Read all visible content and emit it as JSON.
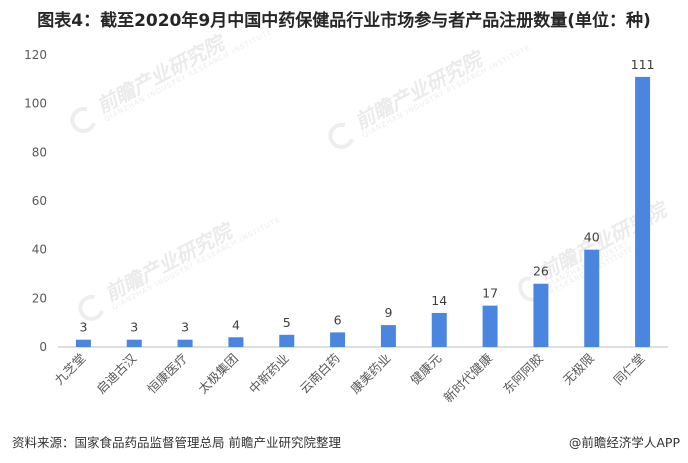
{
  "title": "图表4：截至2020年9月中国中药保健品行业市场参与者产品注册数量(单位：种)",
  "footer": "资料来源：国家食品药品监督管理总局 前瞻产业研究院整理",
  "credit": "@前瞻经济学人APP",
  "watermark": {
    "main": "前瞻产业研究院",
    "sub": "QIANZHAN INDUSTRY RESEARCH INSTITUTE"
  },
  "colors": {
    "bar": "#4a86df",
    "grid": "#d9d9d9",
    "axis": "#bfbfbf",
    "text": "#595959"
  },
  "chart_data": {
    "type": "bar",
    "title": "图表4：截至2020年9月中国中药保健品行业市场参与者产品注册数量(单位：种)",
    "xlabel": "",
    "ylabel": "",
    "ylim": [
      0,
      120
    ],
    "yticks": [
      0,
      20,
      40,
      60,
      80,
      100,
      120
    ],
    "grid": false,
    "legend": "none",
    "categories": [
      "九芝堂",
      "启迪古汉",
      "恒康医疗",
      "太极集团",
      "中新药业",
      "云南白药",
      "康美药业",
      "健康元",
      "新时代健康",
      "东阿阿胶",
      "无极限",
      "同仁堂"
    ],
    "values": [
      3,
      3,
      3,
      4,
      5,
      6,
      9,
      14,
      17,
      26,
      40,
      111
    ],
    "data_labels": [
      "3",
      "3",
      "3",
      "4",
      "5",
      "6",
      "9",
      "14",
      "17",
      "26",
      "40",
      "111"
    ]
  }
}
